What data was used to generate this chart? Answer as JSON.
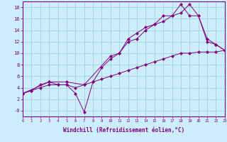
{
  "xlabel": "Windchill (Refroidissement éolien,°C)",
  "bg_color": "#cceeff",
  "line_color": "#800080",
  "grid_color": "#99cccc",
  "line1_x": [
    0,
    1,
    2,
    3,
    4,
    5,
    6,
    7,
    8,
    9,
    10,
    11,
    12,
    13,
    14,
    15,
    16,
    17,
    18,
    19,
    20,
    21,
    22,
    23
  ],
  "line1_y": [
    3,
    3.5,
    4.0,
    4.5,
    4.5,
    4.5,
    4.0,
    4.5,
    5.0,
    5.5,
    6.0,
    6.5,
    7.0,
    7.5,
    8.0,
    8.5,
    9.0,
    9.5,
    10.0,
    10.0,
    10.2,
    10.2,
    10.2,
    10.5
  ],
  "line2_x": [
    0,
    1,
    2,
    3,
    4,
    5,
    6,
    7,
    8,
    9,
    10,
    11,
    12,
    13,
    14,
    15,
    16,
    17,
    18,
    19,
    20,
    21,
    22,
    23
  ],
  "line2_y": [
    3,
    3.5,
    4.5,
    5.0,
    4.5,
    4.5,
    3.0,
    -0.2,
    5.0,
    7.5,
    9.0,
    10.0,
    12.5,
    13.5,
    14.5,
    15.0,
    15.5,
    16.5,
    17.0,
    18.5,
    16.5,
    12.5,
    11.5,
    10.5
  ],
  "line3_x": [
    0,
    3,
    5,
    7,
    10,
    11,
    12,
    13,
    14,
    15,
    16,
    17,
    18,
    19,
    20,
    21,
    22,
    23
  ],
  "line3_y": [
    3,
    5.0,
    5.0,
    4.5,
    9.5,
    10.0,
    12.0,
    12.5,
    14.0,
    15.0,
    16.5,
    16.5,
    18.5,
    16.5,
    16.5,
    12.0,
    11.5,
    10.5
  ],
  "xlim": [
    0,
    23
  ],
  "ylim": [
    -1,
    19
  ],
  "yticks": [
    0,
    2,
    4,
    6,
    8,
    10,
    12,
    14,
    16,
    18
  ],
  "ytick_labels": [
    "-0",
    "2",
    "4",
    "6",
    "8",
    "10",
    "12",
    "14",
    "16",
    "18"
  ],
  "xticks": [
    0,
    1,
    2,
    3,
    4,
    5,
    6,
    7,
    8,
    9,
    10,
    11,
    12,
    13,
    14,
    15,
    16,
    17,
    18,
    19,
    20,
    21,
    22,
    23
  ]
}
